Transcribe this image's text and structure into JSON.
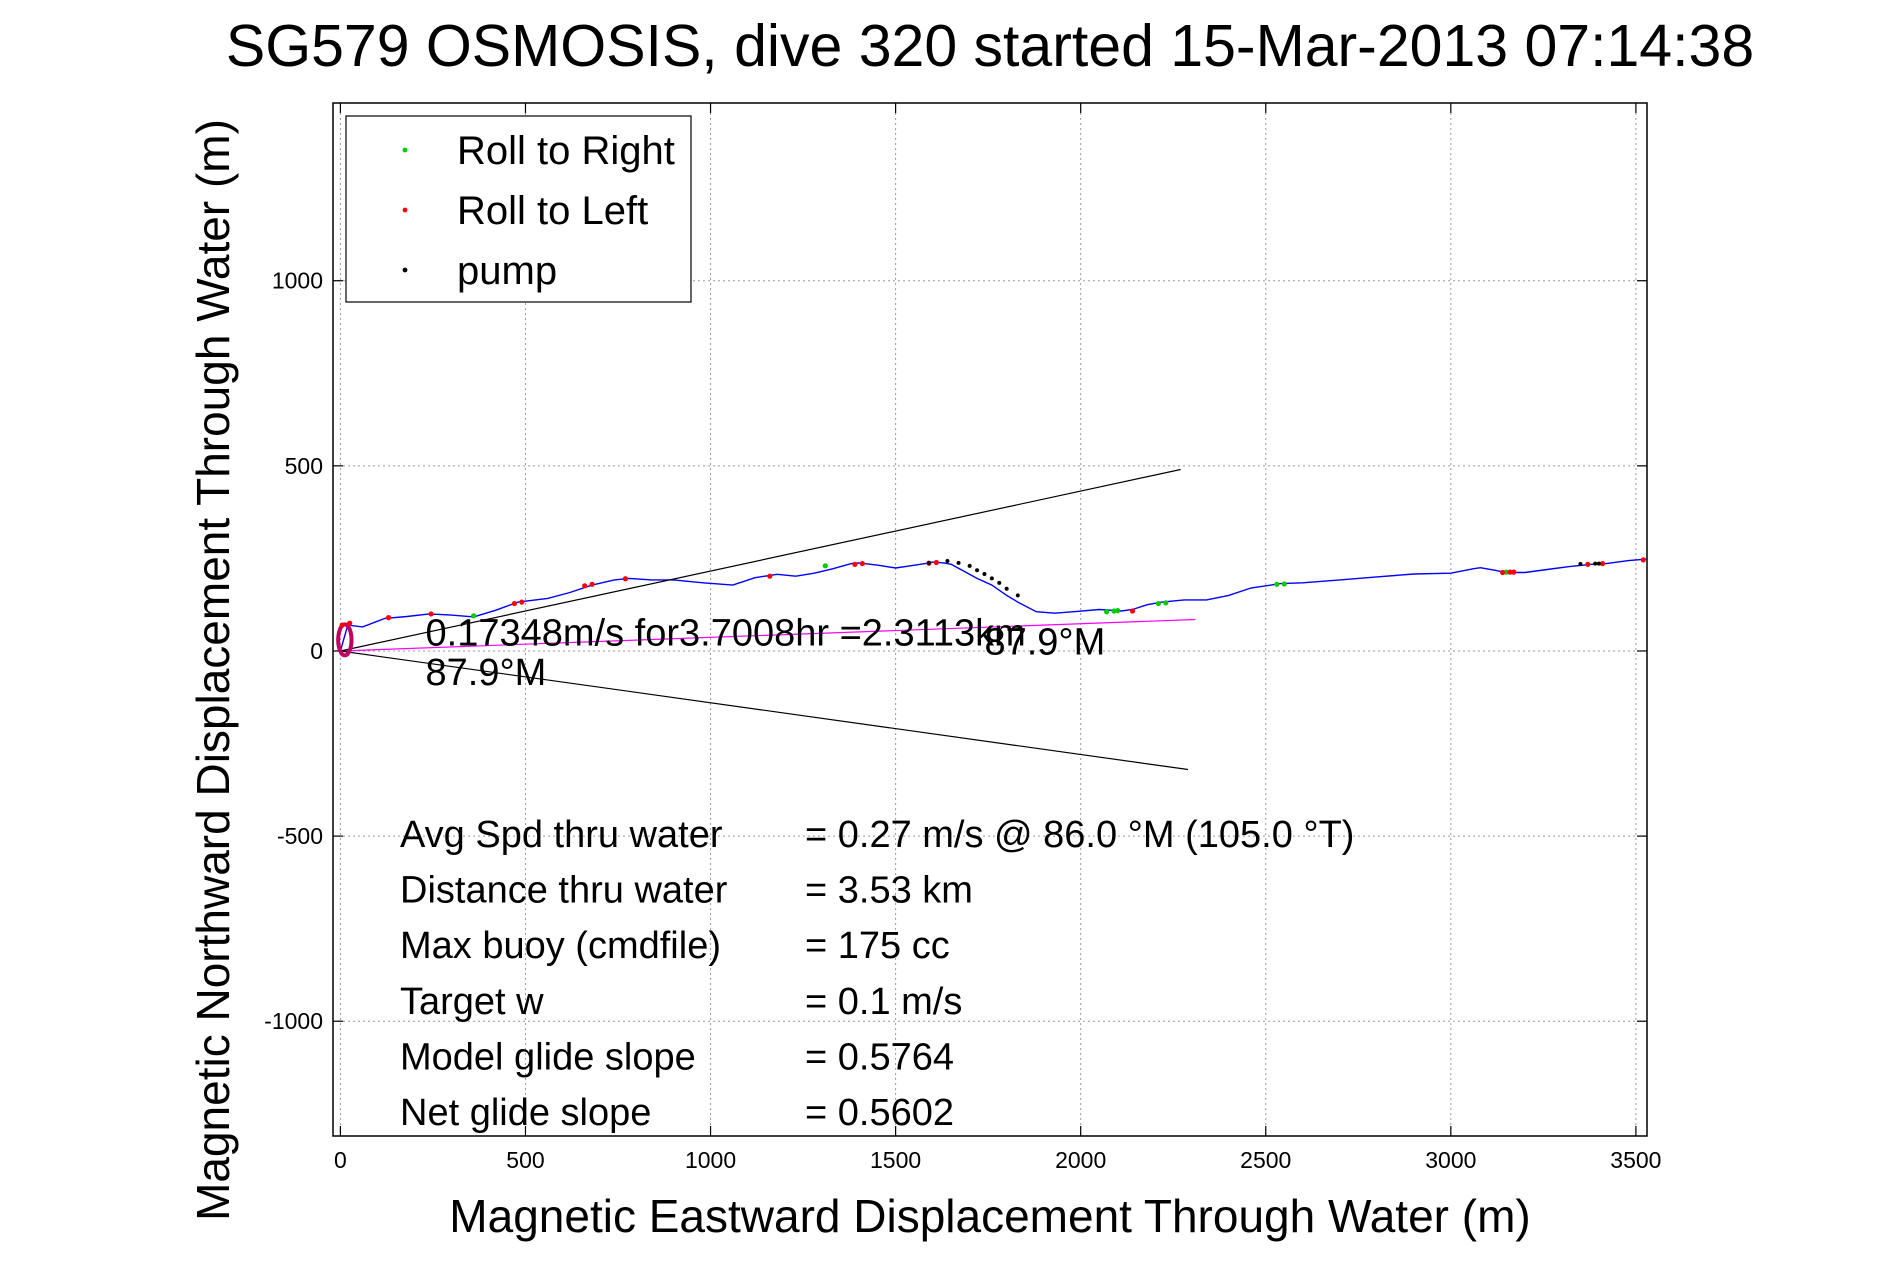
{
  "chart_data": {
    "type": "line",
    "title": "SG579 OSMOSIS, dive 320 started 15-Mar-2013 07:14:38",
    "xlabel": "Magnetic Eastward Displacement Through Water (m)",
    "ylabel": "Magnetic Northward Displacement Through Water (m)",
    "xlim": [
      -20,
      3530
    ],
    "ylim": [
      -1310,
      1480
    ],
    "xticks": [
      0,
      500,
      1000,
      1500,
      2000,
      2500,
      3000,
      3500
    ],
    "yticks": [
      -1000,
      -500,
      0,
      500,
      1000
    ],
    "grid": true,
    "legend_placement": "top-left",
    "legend": [
      {
        "label": "Roll to Right",
        "color": "#00cc00"
      },
      {
        "label": "Roll to Left",
        "color": "#ff0000"
      },
      {
        "label": "pump",
        "color": "#000000"
      }
    ],
    "series": [
      {
        "kind": "track",
        "color": "#0000ff",
        "x": [
          0,
          20,
          60,
          120,
          180,
          240,
          300,
          360,
          420,
          480,
          560,
          620,
          680,
          740,
          780,
          840,
          900,
          980,
          1060,
          1120,
          1180,
          1230,
          1280,
          1330,
          1380,
          1400,
          1450,
          1500,
          1540,
          1580,
          1600,
          1630,
          1650,
          1680,
          1720,
          1760,
          1800,
          1830,
          1880,
          1930,
          1990,
          2050,
          2080,
          2110,
          2140,
          2180,
          2220,
          2280,
          2340,
          2400,
          2460,
          2540,
          2600,
          2700,
          2800,
          2900,
          3000,
          3060,
          3080,
          3120,
          3150,
          3200,
          3260,
          3320,
          3380,
          3420,
          3480,
          3530
        ],
        "y": [
          0,
          70,
          65,
          88,
          93,
          100,
          97,
          92,
          110,
          132,
          142,
          158,
          178,
          192,
          196,
          192,
          192,
          184,
          178,
          198,
          207,
          202,
          210,
          222,
          236,
          238,
          232,
          224,
          230,
          236,
          240,
          238,
          234,
          218,
          196,
          178,
          150,
          132,
          106,
          102,
          107,
          112,
          110,
          108,
          112,
          125,
          132,
          138,
          138,
          150,
          170,
          182,
          184,
          192,
          200,
          208,
          210,
          222,
          225,
          218,
          212,
          212,
          220,
          228,
          234,
          236,
          244,
          248
        ]
      },
      {
        "kind": "current",
        "color": "#ff00ff",
        "x": [
          0,
          2310
        ],
        "y": [
          0,
          85
        ]
      },
      {
        "kind": "cone",
        "color": "#000000",
        "x": [
          2270,
          0,
          2290
        ],
        "y": [
          490,
          0,
          -320
        ]
      }
    ],
    "markers": {
      "roll_right": {
        "color": "#00cc00",
        "x": [
          360,
          1310,
          2070,
          2090,
          2100,
          2210,
          2230,
          2530,
          2550,
          3150
        ],
        "y": [
          95,
          230,
          106,
          108,
          109,
          128,
          130,
          180,
          181,
          213
        ]
      },
      "roll_left": {
        "color": "#ff0000",
        "x": [
          5,
          25,
          130,
          245,
          470,
          490,
          660,
          680,
          770,
          1160,
          1390,
          1410,
          1590,
          1610,
          2140,
          3140,
          3160,
          3170,
          3370,
          3410,
          3520
        ],
        "y": [
          70,
          75,
          90,
          100,
          128,
          132,
          176,
          180,
          195,
          202,
          234,
          236,
          237,
          239,
          108,
          212,
          213,
          213,
          234,
          236,
          246
        ]
      },
      "pump": {
        "color": "#000000",
        "x": [
          1590,
          1640,
          1670,
          1700,
          1720,
          1740,
          1760,
          1780,
          1800,
          1830,
          3350,
          3390,
          3400
        ],
        "y": [
          238,
          243,
          238,
          230,
          218,
          208,
          196,
          184,
          168,
          150,
          235,
          236,
          236
        ]
      },
      "start_loop": {
        "color": "#c00060",
        "cx": 12,
        "cy": 30,
        "rx": 18,
        "ry": 42
      }
    },
    "annotations": [
      {
        "text": "0.17348m/s for3.7008hr =2.3113km",
        "x": 230,
        "y": 15
      },
      {
        "text": "87.9°M",
        "x": 230,
        "y": -92
      },
      {
        "text": "87.9°M",
        "x": 1740,
        "y": -10
      }
    ],
    "stats": [
      {
        "label": "Avg Spd thru water",
        "value": "=  0.27 m/s @  86.0 °M (105.0 °T)"
      },
      {
        "label": "Distance thru water",
        "value": "=  3.53 km"
      },
      {
        "label": "Max buoy (cmdfile)",
        "value": "= 175 cc"
      },
      {
        "label": "Target w",
        "value": "= 0.1 m/s"
      },
      {
        "label": "Model glide slope",
        "value": "= 0.5764"
      },
      {
        "label": "Net glide slope",
        "value": "= 0.5602"
      }
    ]
  }
}
